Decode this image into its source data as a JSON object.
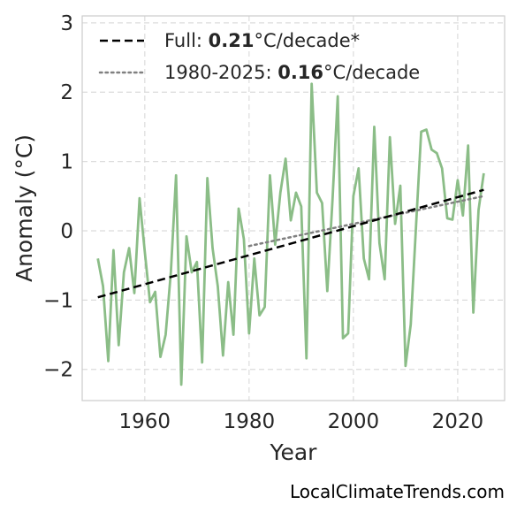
{
  "chart_data": {
    "type": "line",
    "xlabel": "Year",
    "ylabel": "Anomaly (°C)",
    "xlim": [
      1948,
      2029
    ],
    "ylim": [
      -2.45,
      3.1
    ],
    "xticks": [
      1960,
      1980,
      2000,
      2020
    ],
    "yticks": [
      -2,
      -1,
      0,
      1,
      2,
      3
    ],
    "ytick_labels": [
      "−2",
      "−1",
      "0",
      "1",
      "2",
      "3"
    ],
    "grid": true,
    "legend_position": "top-left",
    "series": [
      {
        "name": "",
        "color": "#8bbd87",
        "style": "solid",
        "x": [
          1951,
          1952,
          1953,
          1954,
          1955,
          1956,
          1957,
          1958,
          1959,
          1960,
          1961,
          1962,
          1963,
          1964,
          1965,
          1966,
          1967,
          1968,
          1969,
          1970,
          1971,
          1972,
          1973,
          1974,
          1975,
          1976,
          1977,
          1978,
          1979,
          1980,
          1981,
          1982,
          1983,
          1984,
          1985,
          1986,
          1987,
          1988,
          1989,
          1990,
          1991,
          1992,
          1993,
          1994,
          1995,
          1996,
          1997,
          1998,
          1999,
          2000,
          2001,
          2002,
          2003,
          2004,
          2005,
          2006,
          2007,
          2008,
          2009,
          2010,
          2011,
          2012,
          2013,
          2014,
          2015,
          2016,
          2017,
          2018,
          2019,
          2020,
          2021,
          2022,
          2023,
          2024,
          2025
        ],
        "y": [
          -0.4,
          -0.8,
          -1.88,
          -0.28,
          -1.65,
          -0.6,
          -0.25,
          -0.9,
          0.47,
          -0.3,
          -1.03,
          -0.88,
          -1.82,
          -1.5,
          -0.6,
          0.8,
          -2.22,
          -0.08,
          -0.6,
          -0.45,
          -1.9,
          0.76,
          -0.25,
          -0.8,
          -1.8,
          -0.74,
          -1.5,
          0.32,
          -0.12,
          -1.48,
          -0.4,
          -1.22,
          -1.1,
          0.8,
          -0.2,
          0.55,
          1.04,
          0.15,
          0.55,
          0.35,
          -1.84,
          2.12,
          0.55,
          0.4,
          -0.87,
          0.45,
          1.94,
          -1.55,
          -1.48,
          0.5,
          0.9,
          -0.4,
          -0.7,
          1.5,
          -0.18,
          -0.7,
          1.35,
          0.1,
          0.65,
          -1.95,
          -1.35,
          0.05,
          1.43,
          1.46,
          1.17,
          1.12,
          0.9,
          0.18,
          0.16,
          0.73,
          0.22,
          1.23,
          -1.18,
          0.3,
          0.83
        ]
      },
      {
        "name": "Full: 0.21°C/decade*",
        "label_prefix": "Full: ",
        "label_value": "0.21",
        "label_suffix": "°C/decade*",
        "color": "#000000",
        "style": "dashed",
        "x": [
          1951,
          2025
        ],
        "y": [
          -0.96,
          0.59
        ]
      },
      {
        "name": "1980-2025: 0.16°C/decade",
        "label_prefix": "1980-2025: ",
        "label_value": "0.16",
        "label_suffix": "°C/decade",
        "color": "#808080",
        "style": "dotted",
        "x": [
          1980,
          2025
        ],
        "y": [
          -0.22,
          0.5
        ]
      }
    ]
  },
  "watermark": "LocalClimateTrends.com"
}
